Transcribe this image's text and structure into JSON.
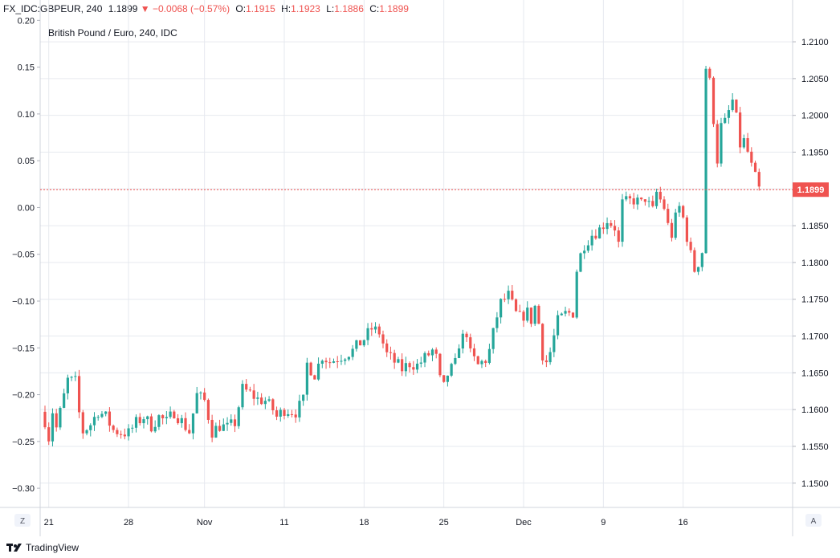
{
  "header": {
    "symbol": "FX_IDC:GBPEUR, 240",
    "last": "1.1899",
    "arrow": "▼",
    "change": "−0.0068 (−0.57%)",
    "o_label": "O:",
    "o_value": "1.1915",
    "h_label": "H:",
    "h_value": "1.1923",
    "l_label": "L:",
    "l_value": "1.1886",
    "c_label": "C:",
    "c_value": "1.1899"
  },
  "footer": {
    "brand": "TradingView"
  },
  "colors": {
    "up": "#26a69a",
    "down": "#ef5350",
    "grid": "#e6e9ef",
    "price_line": "#ef5350",
    "axis_text": "#131722"
  },
  "buttons": {
    "left": "Z",
    "right": "A"
  },
  "chart_data": {
    "type": "candlestick",
    "title": "British Pound / Euro, 240, IDC",
    "last_price": 1.1899,
    "last_price_label": "1.1899",
    "right_axis": {
      "ylim": [
        1.1467,
        1.2135
      ],
      "ticks": [
        "1.1500",
        "1.1550",
        "1.1600",
        "1.1650",
        "1.1700",
        "1.1750",
        "1.1800",
        "1.1850",
        "1.1900",
        "1.1950",
        "1.2000",
        "1.2050",
        "1.2100"
      ]
    },
    "left_axis": {
      "ylim": [
        -0.3205,
        0.2046
      ],
      "ticks": [
        "-0.30",
        "-0.25",
        "-0.20",
        "-0.15",
        "-0.10",
        "-0.05",
        "0.00",
        "0.05",
        "0.10",
        "0.15",
        "0.20"
      ]
    },
    "x_labels": [
      "21",
      "28",
      "Nov",
      "11",
      "18",
      "25",
      "Dec",
      "9",
      "16"
    ],
    "x_label_index": [
      1,
      22,
      42,
      63,
      84,
      105,
      126,
      147,
      168
    ],
    "grid": true,
    "close_path": [
      [
        0,
        1.1585
      ],
      [
        1,
        1.1562
      ],
      [
        2,
        1.1598
      ],
      [
        3,
        1.1575
      ],
      [
        6,
        1.164
      ],
      [
        8,
        1.1638
      ],
      [
        9,
        1.1595
      ],
      [
        10,
        1.157
      ],
      [
        12,
        1.158
      ],
      [
        14,
        1.1598
      ],
      [
        16,
        1.159
      ],
      [
        18,
        1.1572
      ],
      [
        20,
        1.1569
      ],
      [
        22,
        1.1568
      ],
      [
        24,
        1.1582
      ],
      [
        26,
        1.159
      ],
      [
        28,
        1.1578
      ],
      [
        30,
        1.159
      ],
      [
        32,
        1.1583
      ],
      [
        34,
        1.1597
      ],
      [
        36,
        1.1584
      ],
      [
        38,
        1.157
      ],
      [
        40,
        1.162
      ],
      [
        42,
        1.1612
      ],
      [
        44,
        1.157
      ],
      [
        46,
        1.1578
      ],
      [
        48,
        1.1575
      ],
      [
        50,
        1.1582
      ],
      [
        52,
        1.1628
      ],
      [
        54,
        1.1622
      ],
      [
        56,
        1.1614
      ],
      [
        58,
        1.1612
      ],
      [
        60,
        1.16
      ],
      [
        61,
        1.159
      ],
      [
        63,
        1.16
      ],
      [
        66,
        1.1597
      ],
      [
        68,
        1.1612
      ],
      [
        69,
        1.1662
      ],
      [
        71,
        1.1648
      ],
      [
        73,
        1.1673
      ],
      [
        75,
        1.1665
      ],
      [
        77,
        1.167
      ],
      [
        79,
        1.1675
      ],
      [
        81,
        1.168
      ],
      [
        84,
        1.1696
      ],
      [
        86,
        1.171
      ],
      [
        88,
        1.1705
      ],
      [
        90,
        1.1675
      ],
      [
        92,
        1.1665
      ],
      [
        94,
        1.1655
      ],
      [
        96,
        1.1663
      ],
      [
        98,
        1.166
      ],
      [
        100,
        1.167
      ],
      [
        102,
        1.168
      ],
      [
        103,
        1.167
      ],
      [
        104,
        1.164
      ],
      [
        105,
        1.163
      ],
      [
        106,
        1.1648
      ],
      [
        108,
        1.1662
      ],
      [
        109,
        1.169
      ],
      [
        111,
        1.1705
      ],
      [
        112,
        1.1675
      ],
      [
        114,
        1.166
      ],
      [
        116,
        1.1668
      ],
      [
        117,
        1.168
      ],
      [
        119,
        1.1727
      ],
      [
        120,
        1.1745
      ],
      [
        122,
        1.1755
      ],
      [
        124,
        1.173
      ],
      [
        125,
        1.1725
      ],
      [
        127,
        1.1732
      ],
      [
        128,
        1.1722
      ],
      [
        129,
        1.174
      ],
      [
        130,
        1.1717
      ],
      [
        131,
        1.1675
      ],
      [
        132,
        1.1665
      ],
      [
        133,
        1.1678
      ],
      [
        135,
        1.172
      ],
      [
        137,
        1.173
      ],
      [
        139,
        1.1732
      ],
      [
        140,
        1.179
      ],
      [
        141,
        1.181
      ],
      [
        142,
        1.1825
      ],
      [
        144,
        1.1838
      ],
      [
        146,
        1.1845
      ],
      [
        148,
        1.1858
      ],
      [
        150,
        1.1848
      ],
      [
        151,
        1.1825
      ],
      [
        152,
        1.188
      ],
      [
        155,
        1.1885
      ],
      [
        157,
        1.188
      ],
      [
        158,
        1.1888
      ],
      [
        159,
        1.1878
      ],
      [
        160,
        1.187
      ],
      [
        161,
        1.1895
      ],
      [
        162,
        1.1885
      ],
      [
        163,
        1.1875
      ],
      [
        164,
        1.185
      ],
      [
        165,
        1.1838
      ],
      [
        166,
        1.186
      ],
      [
        167,
        1.1875
      ],
      [
        168,
        1.186
      ],
      [
        169,
        1.1835
      ],
      [
        170,
        1.181
      ],
      [
        171,
        1.179
      ],
      [
        172,
        1.18
      ],
      [
        173,
        1.1815
      ],
      [
        174,
        1.2065
      ],
      [
        175,
        1.2045
      ],
      [
        176,
        1.1995
      ],
      [
        177,
        1.194
      ],
      [
        178,
        1.1985
      ],
      [
        179,
        1.199
      ],
      [
        180,
        1.2005
      ],
      [
        181,
        1.202
      ],
      [
        182,
        1.1995
      ],
      [
        183,
        1.196
      ],
      [
        184,
        1.1965
      ],
      [
        185,
        1.195
      ],
      [
        186,
        1.193
      ],
      [
        187,
        1.1915
      ],
      [
        188,
        1.1899
      ]
    ]
  }
}
